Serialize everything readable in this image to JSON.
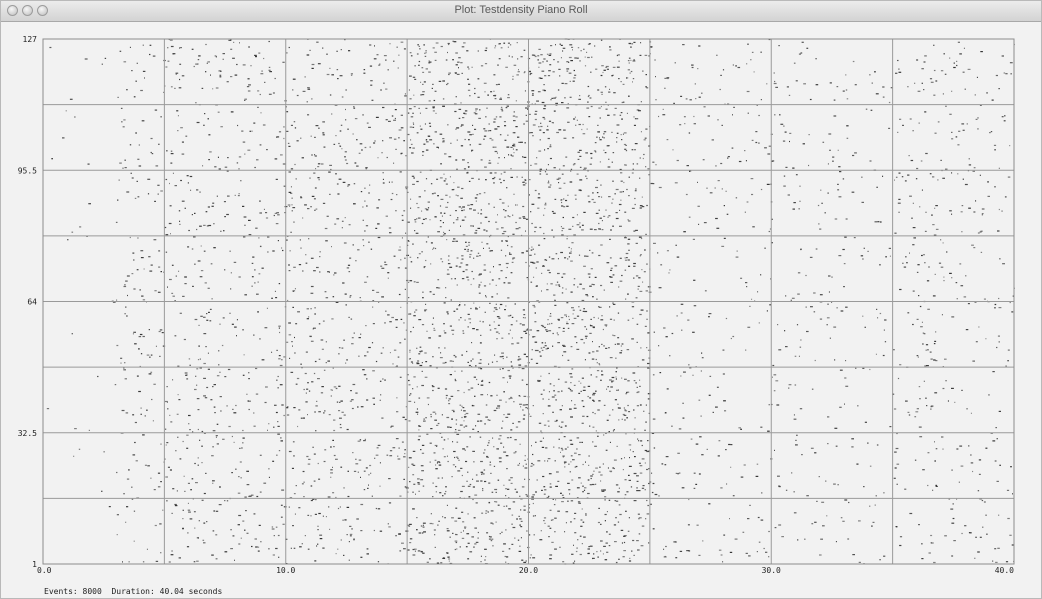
{
  "window": {
    "title": "Plot: Testdensity Piano Roll"
  },
  "status": {
    "events_label": "Events:",
    "events_value": "8000",
    "duration_label": "Duration:",
    "duration_value": "40.04",
    "duration_unit": "seconds"
  },
  "chart_data": {
    "type": "scatter",
    "title": "Testdensity Piano Roll",
    "xlabel": "",
    "ylabel": "",
    "xlim": [
      0,
      40
    ],
    "ylim": [
      1,
      127
    ],
    "x_ticks": [
      "0.0",
      "10.0",
      "20.0",
      "30.0",
      "40.0"
    ],
    "y_ticks": [
      "1",
      "32.5",
      "64",
      "95.5",
      "127"
    ],
    "x_tick_values": [
      0,
      10,
      20,
      30,
      40
    ],
    "y_tick_values": [
      1,
      32.5,
      64,
      95.5,
      127
    ],
    "grid": true,
    "marks": "short horizontal note bars (pitch vs time)",
    "density_profile": [
      {
        "x_range": [
          0,
          3
        ],
        "relative_density": 0.02
      },
      {
        "x_range": [
          3,
          5
        ],
        "relative_density": 0.12
      },
      {
        "x_range": [
          5,
          10
        ],
        "relative_density": 0.38
      },
      {
        "x_range": [
          10,
          15
        ],
        "relative_density": 0.45
      },
      {
        "x_range": [
          15,
          20
        ],
        "relative_density": 0.88
      },
      {
        "x_range": [
          20,
          25
        ],
        "relative_density": 0.85
      },
      {
        "x_range": [
          25,
          30
        ],
        "relative_density": 0.2
      },
      {
        "x_range": [
          30,
          35
        ],
        "relative_density": 0.18
      },
      {
        "x_range": [
          35,
          40
        ],
        "relative_density": 0.26
      }
    ],
    "events": 8000,
    "duration_seconds": 40.04
  },
  "colors": {
    "plot_bg": "#f2f2f2",
    "grid": "#9a9a9a",
    "note": "#333333"
  }
}
